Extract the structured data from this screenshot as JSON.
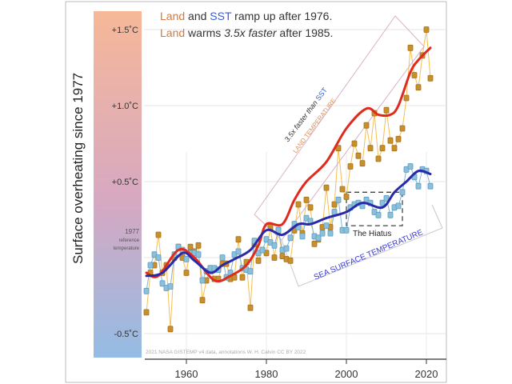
{
  "chart_data": {
    "type": "line",
    "title_lines": [
      [
        {
          "text": "Land",
          "color": "#d8783a"
        },
        {
          "text": " and ",
          "color": "#333333"
        },
        {
          "text": "SST",
          "color": "#3a5ad0"
        },
        {
          "text": " ramp up after 1976.",
          "color": "#333333"
        }
      ],
      [
        {
          "text": "Land",
          "color": "#d8783a"
        },
        {
          "text": " warms ",
          "color": "#333333"
        },
        {
          "text": "3.5x faster",
          "color": "#333333",
          "italic": true
        },
        {
          "text": " after 1985.",
          "color": "#333333"
        }
      ]
    ],
    "ylabel": "Surface overheating since 1977",
    "y_ticks": [
      {
        "value": 1.5,
        "label": "+1.5˚C"
      },
      {
        "value": 1.0,
        "label": "+1.0˚C"
      },
      {
        "value": 0.5,
        "label": "+0.5˚C"
      },
      {
        "value": -0.5,
        "label": "-0.5˚C"
      }
    ],
    "reference_label": [
      "1977",
      "reference",
      "temperature"
    ],
    "x_ticks": [
      1960,
      1980,
      2000,
      2020
    ],
    "xlim": [
      1950,
      2023
    ],
    "ylim": [
      -0.65,
      1.65
    ],
    "grid": true,
    "credit": "2021 NASA GISTEMP v4 data, annotations W. H. Calvin CC BY 2022",
    "x": [
      1950,
      1951,
      1952,
      1953,
      1954,
      1955,
      1956,
      1957,
      1958,
      1959,
      1960,
      1961,
      1962,
      1963,
      1964,
      1965,
      1966,
      1967,
      1968,
      1969,
      1970,
      1971,
      1972,
      1973,
      1974,
      1975,
      1976,
      1977,
      1978,
      1979,
      1980,
      1981,
      1982,
      1983,
      1984,
      1985,
      1986,
      1987,
      1988,
      1989,
      1990,
      1991,
      1992,
      1993,
      1994,
      1995,
      1996,
      1997,
      1998,
      1999,
      2000,
      2001,
      2002,
      2003,
      2004,
      2005,
      2006,
      2007,
      2008,
      2009,
      2010,
      2011,
      2012,
      2013,
      2014,
      2015,
      2016,
      2017,
      2018,
      2019,
      2020,
      2021
    ],
    "series": [
      {
        "key": "land",
        "color": "#c8902a",
        "line_color": "#f3bf55",
        "values": [
          -0.36,
          -0.1,
          -0.05,
          0.15,
          -0.1,
          -0.05,
          -0.47,
          0.0,
          0.07,
          0.0,
          -0.1,
          0.07,
          0.04,
          0.08,
          -0.28,
          -0.15,
          -0.07,
          -0.14,
          -0.14,
          -0.04,
          -0.04,
          -0.14,
          -0.13,
          0.12,
          -0.13,
          -0.03,
          -0.33,
          0.09,
          -0.02,
          0.05,
          0.03,
          0.2,
          0.0,
          0.18,
          0.01,
          -0.01,
          -0.02,
          0.18,
          0.35,
          0.16,
          0.38,
          0.33,
          0.09,
          0.12,
          0.2,
          0.46,
          0.2,
          0.35,
          0.72,
          0.45,
          0.4,
          0.6,
          0.75,
          0.67,
          0.62,
          0.87,
          0.72,
          0.95,
          0.65,
          0.72,
          0.97,
          0.77,
          0.72,
          0.78,
          0.85,
          1.05,
          1.38,
          1.2,
          1.12,
          1.33,
          1.5,
          1.18
        ]
      },
      {
        "key": "sst",
        "color": "#8cc0da",
        "line_color": "#7fb4d8",
        "values": [
          -0.22,
          -0.05,
          0.02,
          0.0,
          -0.17,
          -0.2,
          -0.19,
          0.02,
          0.07,
          0.05,
          -0.01,
          0.03,
          0.03,
          0.02,
          -0.15,
          -0.09,
          -0.07,
          -0.07,
          -0.08,
          0.0,
          -0.13,
          -0.1,
          0.02,
          0.04,
          -0.07,
          -0.08,
          -0.09,
          0.11,
          0.03,
          0.05,
          0.12,
          0.1,
          0.08,
          0.18,
          0.05,
          0.06,
          0.13,
          0.22,
          0.2,
          0.14,
          0.26,
          0.24,
          0.14,
          0.13,
          0.16,
          0.21,
          0.16,
          0.3,
          0.38,
          0.18,
          0.18,
          0.33,
          0.35,
          0.36,
          0.34,
          0.38,
          0.36,
          0.3,
          0.28,
          0.36,
          0.39,
          0.28,
          0.33,
          0.34,
          0.43,
          0.58,
          0.6,
          0.53,
          0.47,
          0.58,
          0.57,
          0.47
        ]
      }
    ],
    "smoothed": [
      {
        "key": "land-trend",
        "color": "#e02a1e",
        "x": [
          1950,
          1953,
          1958,
          1962,
          1967,
          1971,
          1975,
          1978,
          1980,
          1984,
          1987,
          1990,
          1995,
          2000,
          2005,
          2008,
          2011,
          2013,
          2016,
          2018,
          2021
        ],
        "values": [
          -0.1,
          -0.12,
          0.05,
          0.0,
          -0.15,
          -0.12,
          -0.05,
          0.08,
          0.22,
          0.22,
          0.38,
          0.5,
          0.63,
          0.85,
          0.98,
          0.94,
          0.94,
          1.0,
          1.22,
          1.3,
          1.38
        ]
      },
      {
        "key": "sst-trend",
        "color": "#2a2aa8",
        "x": [
          1950,
          1954,
          1959,
          1962,
          1966,
          1969,
          1972,
          1976,
          1980,
          1984,
          1988,
          1991,
          1995,
          2000,
          2004,
          2009,
          2012,
          2015,
          2018,
          2021
        ],
        "values": [
          -0.12,
          -0.1,
          0.03,
          -0.02,
          -0.1,
          -0.05,
          -0.01,
          0.05,
          0.18,
          0.15,
          0.22,
          0.22,
          0.26,
          0.3,
          0.36,
          0.33,
          0.43,
          0.5,
          0.57,
          0.55
        ]
      }
    ],
    "annotations": {
      "land_rate": [
        {
          "text": "3.5x faster than ",
          "color": "#333333",
          "italic": true
        },
        {
          "text": "SST",
          "color": "#3a5ad0"
        }
      ],
      "land_label": "LAND TEMPERATURE",
      "land_label_color": "#e0905a",
      "sst_label": "SEA SURFACE TEMPERATURE",
      "sst_label_color": "#3a3ad0",
      "hiatus_label": "The Hiatus",
      "hiatus_years": [
        2000,
        2014
      ],
      "hiatus_range": [
        0.21,
        0.43
      ]
    },
    "band_colors": [
      "#f6b898",
      "#d6a8c2",
      "#94bce4"
    ]
  }
}
